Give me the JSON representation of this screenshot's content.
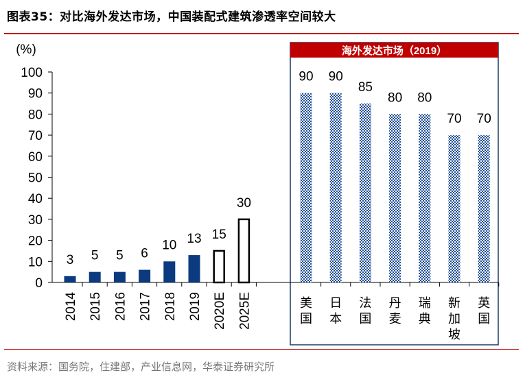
{
  "header": {
    "figure_label": "图表35：",
    "title": "对比海外发达市场，中国装配式建筑渗透率空间较大"
  },
  "footer": {
    "source": "资料来源：国务院，住建部，产业信息网，华泰证券研究所"
  },
  "colors": {
    "accent_red": "#c00000",
    "bar_navy": "#0b3a7e",
    "forecast_outline": "#000000",
    "overseas_pattern": "#1f4e99",
    "panel_border": "#1f3864"
  },
  "chart_data": {
    "type": "bar",
    "ylabel": "(%)",
    "ylim": [
      0,
      100
    ],
    "yticks": [
      0,
      10,
      20,
      30,
      40,
      50,
      60,
      70,
      80,
      90,
      100
    ],
    "grid": false,
    "panel_title": "海外发达市场（2019）",
    "series": [
      {
        "categories": [
          "2014",
          "2015",
          "2016",
          "2017",
          "2018",
          "2019",
          "2020E",
          "2025E"
        ],
        "values": [
          3,
          5,
          5,
          6,
          10,
          13,
          15,
          30
        ],
        "labels": [
          "3",
          "5",
          "5",
          "6",
          "10",
          "13",
          "15",
          "30"
        ],
        "styles": [
          "solid",
          "solid",
          "solid",
          "solid",
          "solid",
          "solid",
          "outline",
          "outline"
        ]
      },
      {
        "categories": [
          "美国",
          "日本",
          "法国",
          "丹麦",
          "瑞典",
          "新加坡",
          "英国"
        ],
        "values": [
          90,
          90,
          85,
          80,
          80,
          70,
          70
        ],
        "labels": [
          "90",
          "90",
          "85",
          "80",
          "80",
          "70",
          "70"
        ],
        "styles": [
          "pattern",
          "pattern",
          "pattern",
          "pattern",
          "pattern",
          "pattern",
          "pattern"
        ]
      }
    ]
  }
}
